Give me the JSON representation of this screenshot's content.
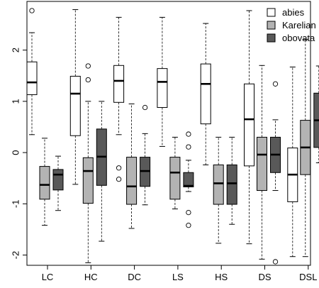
{
  "chart_data": {
    "type": "box",
    "categories": [
      "LC",
      "HC",
      "DC",
      "LS",
      "HS",
      "DS",
      "DSL"
    ],
    "ylim": [
      -2.2,
      2.95
    ],
    "yticks": [
      -2,
      -1,
      0,
      1,
      2
    ],
    "ytick_labels": [
      "-2",
      "-1",
      "0",
      "1",
      "2"
    ],
    "grid": false,
    "legend_position": "top-right",
    "series": [
      {
        "name": "abies",
        "color": "#ffffff",
        "boxes": [
          {
            "low": 0.35,
            "q1": 1.13,
            "median": 1.37,
            "q3": 1.77,
            "high": 2.34,
            "outliers": [
              2.77
            ]
          },
          {
            "low": -0.62,
            "q1": 0.33,
            "median": 1.15,
            "q3": 1.49,
            "high": 2.79,
            "outliers": []
          },
          {
            "low": 0.35,
            "q1": 0.98,
            "median": 1.4,
            "q3": 1.7,
            "high": 2.64,
            "outliers": [
              -0.3,
              -0.52
            ]
          },
          {
            "low": 0.12,
            "q1": 0.88,
            "median": 1.38,
            "q3": 1.64,
            "high": 2.64,
            "outliers": []
          },
          {
            "low": -0.24,
            "q1": 0.56,
            "median": 1.34,
            "q3": 1.73,
            "high": 2.52,
            "outliers": []
          },
          {
            "low": -1.78,
            "q1": -0.26,
            "median": 0.65,
            "q3": 1.34,
            "high": 2.77,
            "outliers": []
          },
          {
            "low": -2.03,
            "q1": -0.96,
            "median": -0.43,
            "q3": 0.09,
            "high": 1.67,
            "outliers": []
          }
        ]
      },
      {
        "name": "Karelian",
        "color": "#b3b3b3",
        "boxes": [
          {
            "low": -1.42,
            "q1": -0.91,
            "median": -0.63,
            "q3": -0.27,
            "high": 0.28,
            "outliers": []
          },
          {
            "low": -2.15,
            "q1": -0.99,
            "median": -0.36,
            "q3": -0.1,
            "high": 1.0,
            "outliers": [
              1.69,
              1.42
            ]
          },
          {
            "low": -1.48,
            "q1": -1.01,
            "median": -0.66,
            "q3": -0.09,
            "high": 0.95,
            "outliers": []
          },
          {
            "low": -1.1,
            "q1": -0.91,
            "median": -0.39,
            "q3": -0.09,
            "high": 0.3,
            "outliers": []
          },
          {
            "low": -1.77,
            "q1": -1.01,
            "median": -0.6,
            "q3": -0.24,
            "high": 0.3,
            "outliers": []
          },
          {
            "low": -2.08,
            "q1": -0.74,
            "median": -0.04,
            "q3": 0.3,
            "high": 1.7,
            "outliers": []
          },
          {
            "low": -2.03,
            "q1": -0.43,
            "median": 0.1,
            "q3": 0.63,
            "high": 2.21,
            "outliers": []
          }
        ]
      },
      {
        "name": "obovata",
        "color": "#595959",
        "boxes": [
          {
            "low": -1.13,
            "q1": -0.73,
            "median": -0.43,
            "q3": -0.33,
            "high": -0.07,
            "outliers": []
          },
          {
            "low": -1.73,
            "q1": -0.64,
            "median": -0.08,
            "q3": 0.46,
            "high": 1.0,
            "outliers": []
          },
          {
            "low": -1.02,
            "q1": -0.66,
            "median": -0.36,
            "q3": -0.09,
            "high": 0.37,
            "outliers": [
              0.88
            ]
          },
          {
            "low": -0.76,
            "q1": -0.67,
            "median": -0.65,
            "q3": -0.39,
            "high": -0.15,
            "outliers": [
              0.36,
              0.11,
              -1.17,
              -1.42
            ]
          },
          {
            "low": -1.4,
            "q1": -1.01,
            "median": -0.6,
            "q3": -0.24,
            "high": 0.3,
            "outliers": []
          },
          {
            "low": -0.74,
            "q1": -0.39,
            "median": -0.04,
            "q3": 0.3,
            "high": 0.64,
            "outliers": [
              1.34,
              -2.13
            ]
          },
          {
            "low": -0.2,
            "q1": 0.1,
            "median": 0.63,
            "q3": 1.16,
            "high": 1.69,
            "outliers": []
          }
        ]
      }
    ]
  }
}
